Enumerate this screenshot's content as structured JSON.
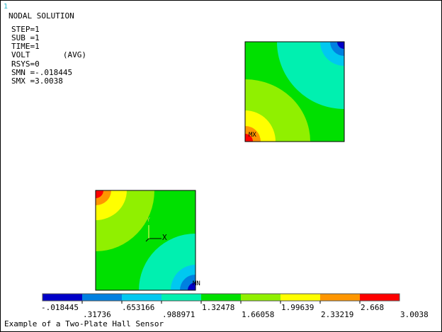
{
  "window_number": "1",
  "solution_info": {
    "title": "NODAL SOLUTION",
    "lines": [
      "STEP=1",
      "SUB =1",
      "TIME=1",
      "VOLT       (AVG)",
      "RSYS=0",
      "SMN =-.018445",
      "SMX =3.0038"
    ]
  },
  "plate_labels": {
    "top_plate_min_marker": "MX",
    "bottom_plate_min_marker": "MN"
  },
  "triad": {
    "y_label": "Y",
    "x_label": "X"
  },
  "legend": {
    "top_values": [
      "-.018445",
      ".653166",
      "1.32478",
      "1.99639",
      "2.668"
    ],
    "bottom_values": [
      ".31736",
      ".988971",
      "1.66058",
      "2.33219",
      "3.0038"
    ],
    "colors": [
      "#0000c8",
      "#0080e0",
      "#00c8f0",
      "#00f0b0",
      "#00e000",
      "#90f000",
      "#ffff00",
      "#ff9600",
      "#ff0000"
    ]
  },
  "footer_title": "Example of a Two-Plate Hall Sensor"
}
